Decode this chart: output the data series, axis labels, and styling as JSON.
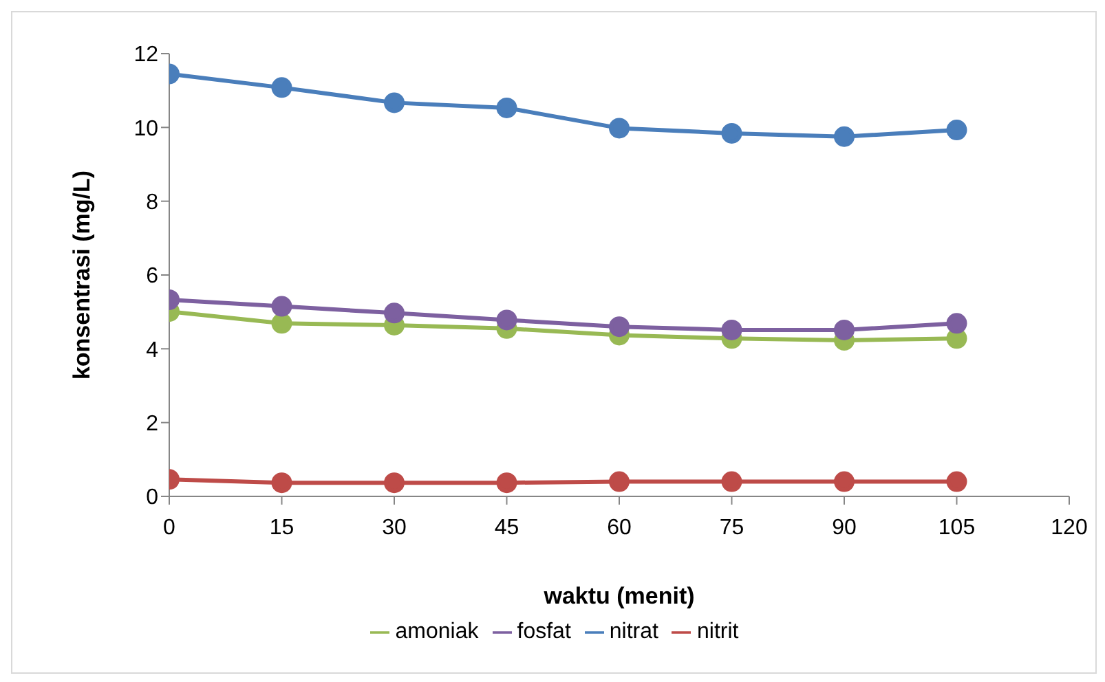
{
  "chart_data": {
    "type": "line",
    "xlabel": "waktu (menit)",
    "ylabel": "konsentrasi (mg/L)",
    "x": [
      0,
      15,
      30,
      45,
      60,
      75,
      90,
      105
    ],
    "series": [
      {
        "name": "nitrat",
        "color": "#4a7ebb",
        "values": [
          11.45,
          11.08,
          10.67,
          10.53,
          9.98,
          9.84,
          9.75,
          9.93
        ]
      },
      {
        "name": "nitrit",
        "color": "#be4b48",
        "values": [
          0.46,
          0.37,
          0.37,
          0.37,
          0.4,
          0.4,
          0.4,
          0.4
        ]
      },
      {
        "name": "amoniak",
        "color": "#98b954",
        "values": [
          5.01,
          4.69,
          4.64,
          4.55,
          4.37,
          4.28,
          4.23,
          4.28
        ]
      },
      {
        "name": "fosfat",
        "color": "#7d60a0",
        "values": [
          5.33,
          5.15,
          4.97,
          4.78,
          4.6,
          4.51,
          4.51,
          4.69
        ]
      }
    ],
    "xlim": [
      0,
      120
    ],
    "xticks": [
      0,
      15,
      30,
      45,
      60,
      75,
      90,
      105,
      120
    ],
    "ylim": [
      0,
      12
    ],
    "yticks": [
      0,
      2,
      4,
      6,
      8,
      10,
      12
    ],
    "grid": false,
    "legend": "bottom",
    "marker": "circle",
    "line_style": "solid"
  }
}
